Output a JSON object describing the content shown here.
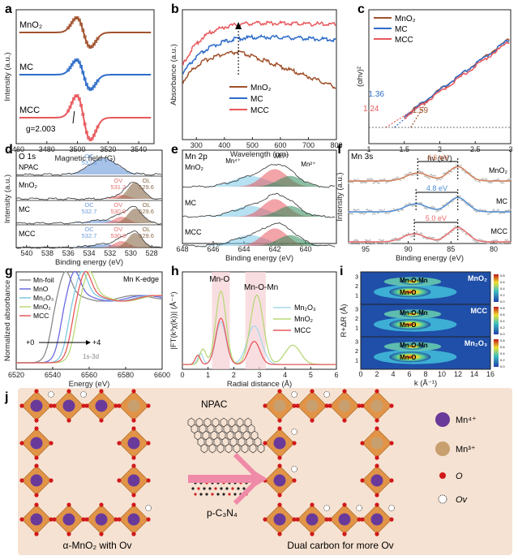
{
  "chart_data": [
    {
      "id": "a",
      "type": "line",
      "panel_label": "a",
      "xlabel": "Magnetic field (G)",
      "ylabel": "Intensity (a.u.)",
      "xlim": [
        3460,
        3550
      ],
      "xticks": [
        3460,
        3480,
        3500,
        3520,
        3540
      ],
      "series": [
        {
          "name": "MnO2",
          "label": "MnO₂",
          "color": "#a0522d",
          "center": 3504
        },
        {
          "name": "MC",
          "color": "#2e6cc8",
          "center": 3504
        },
        {
          "name": "MCC",
          "color": "#e8585c",
          "center": 3504
        }
      ],
      "annotation": "g=2.003"
    },
    {
      "id": "b",
      "type": "line",
      "panel_label": "b",
      "xlabel": "Wavelength (nm)",
      "ylabel": "Absorbance (a.u.)",
      "xlim": [
        250,
        800
      ],
      "xticks": [
        300,
        400,
        500,
        600,
        700,
        800
      ],
      "series": [
        {
          "name": "MnO2",
          "label": "MnO₂",
          "color": "#a0522d"
        },
        {
          "name": "MC",
          "color": "#2e6cc8"
        },
        {
          "name": "MCC",
          "color": "#e8585c"
        }
      ]
    },
    {
      "id": "c",
      "type": "line",
      "panel_label": "c",
      "xlabel": "hv (eV)",
      "ylabel": "(αhv)²",
      "xlim": [
        1.0,
        3.0
      ],
      "xticks": [
        1.0,
        1.5,
        2.0,
        2.5,
        3.0
      ],
      "series": [
        {
          "name": "MnO2",
          "label": "MnO₂",
          "color": "#a0522d",
          "bandgap": 1.59
        },
        {
          "name": "MC",
          "color": "#2e6cc8",
          "bandgap": 1.36
        },
        {
          "name": "MCC",
          "color": "#e8585c",
          "bandgap": 1.24
        }
      ],
      "gap_labels": [
        "1.36",
        "1.24",
        "1.59"
      ]
    },
    {
      "id": "d",
      "type": "line",
      "panel_label": "d",
      "title": "O 1s",
      "xlabel": "Binding energy (eV)",
      "ylabel": "Intensity (a.u.)",
      "xlim": [
        541,
        527
      ],
      "xticks": [
        540,
        538,
        536,
        534,
        532,
        530,
        528
      ],
      "samples": [
        "NPAC",
        "MnO₂",
        "MC",
        "MCC"
      ],
      "peak_labels": {
        "NPAC": [
          {
            "name": "OC",
            "value": "532.5"
          }
        ],
        "MnO2": [
          {
            "name": "OV",
            "value": "531.2"
          },
          {
            "name": "OL",
            "value": "529.6"
          }
        ],
        "MC": [
          {
            "name": "OC",
            "value": "532.7"
          },
          {
            "name": "OV",
            "value": "530.9"
          },
          {
            "name": "OL",
            "value": "529.6"
          }
        ],
        "MCC": [
          {
            "name": "OC",
            "value": "532.7"
          },
          {
            "name": "OV",
            "value": "530.8"
          },
          {
            "name": "OL",
            "value": "529.6"
          }
        ]
      }
    },
    {
      "id": "e",
      "type": "line",
      "panel_label": "e",
      "title": "Mn 2p",
      "xlabel": "Binding energy (eV)",
      "xlim": [
        648,
        638
      ],
      "xticks": [
        648,
        646,
        644,
        642,
        640
      ],
      "samples": [
        "MnO₂",
        "MC",
        "MCC"
      ],
      "states": [
        "Mn⁴⁺",
        "Mn³⁺",
        "Mn²⁺"
      ]
    },
    {
      "id": "f",
      "type": "line",
      "panel_label": "f",
      "title": "Mn 3s",
      "xlabel": "Binding energy (eV)",
      "ylabel": "Intensity (a.u.)",
      "xlim": [
        97,
        78
      ],
      "xticks": [
        95,
        90,
        85,
        80
      ],
      "samples": [
        "MnO₂",
        "MC",
        "MCC"
      ],
      "splitting": [
        "4.6 eV",
        "4.8 eV",
        "5.0 eV"
      ]
    },
    {
      "id": "g",
      "type": "line",
      "panel_label": "g",
      "title": "Mn K-edge",
      "xlabel": "Energy (eV)",
      "ylabel": "Normalized absorbance",
      "xlim": [
        6520,
        6600
      ],
      "xticks": [
        6520,
        6540,
        6560,
        6580,
        6600
      ],
      "series": [
        {
          "name": "Mn-foil",
          "color": "#8a8a8a"
        },
        {
          "name": "MnO",
          "color": "#6a6ae0"
        },
        {
          "name": "Mn2O3",
          "label": "Mn₂O₃",
          "color": "#7ec8e0"
        },
        {
          "name": "MnO2",
          "label": "MnO₂",
          "color": "#b8d878"
        },
        {
          "name": "MCC",
          "color": "#e8585c"
        }
      ],
      "annotations": [
        "+0",
        "+4",
        "1s-3d"
      ]
    },
    {
      "id": "h",
      "type": "line",
      "panel_label": "h",
      "xlabel": "Radial distance (Å)",
      "ylabel": "|FT(k³χ(k))| (Å⁻⁴)",
      "xlim": [
        0,
        6
      ],
      "xticks": [
        0,
        1,
        2,
        3,
        4,
        5,
        6
      ],
      "series": [
        {
          "name": "Mn2O3",
          "label": "Mn₂O₃",
          "color": "#a8d8ec"
        },
        {
          "name": "MnO2",
          "label": "MnO₂",
          "color": "#b8d878"
        },
        {
          "name": "MCC",
          "color": "#e8585c"
        }
      ],
      "annotations": [
        "Mn-O",
        "Mn-O-Mn"
      ]
    },
    {
      "id": "i",
      "type": "heatmap",
      "panel_label": "i",
      "xlabel": "k (Å⁻¹)",
      "ylabel": "R+ΔR (Å)",
      "xlim": [
        0,
        16
      ],
      "xticks": [
        0,
        2,
        4,
        6,
        8,
        10,
        12,
        14,
        16
      ],
      "ylim": [
        0,
        3.5
      ],
      "yticks": [
        1,
        2,
        3
      ],
      "subpanels": [
        {
          "sample": "MnO₂",
          "labels": [
            "Mn-O-Mn",
            "Mn-O"
          ]
        },
        {
          "sample": "MCC",
          "labels": [
            "Mn-O-Mn",
            "Mn-O"
          ]
        },
        {
          "sample": "Mn₂O₃",
          "labels": [
            "Mn-O-Mn",
            "Mn-O"
          ]
        }
      ],
      "colorbar_ticks": [
        "0.8",
        "0.6",
        "0.4",
        "0.2",
        "0.0"
      ]
    }
  ],
  "schematic": {
    "panel_label": "j",
    "left_caption": "α-MnO₂ with Ov",
    "right_caption": "Dual carbon for more Ov",
    "npac_label": "NPAC",
    "cn_label": "p-C₃N₄",
    "legend": [
      "Mn⁴⁺",
      "Mn³⁺",
      "O",
      "Ov"
    ],
    "colors": {
      "mn4": "#6a3a9a",
      "mn3": "#c8a070",
      "o": "#d0181a",
      "octa": "#e09040",
      "bg": "#f6e2d2"
    }
  }
}
